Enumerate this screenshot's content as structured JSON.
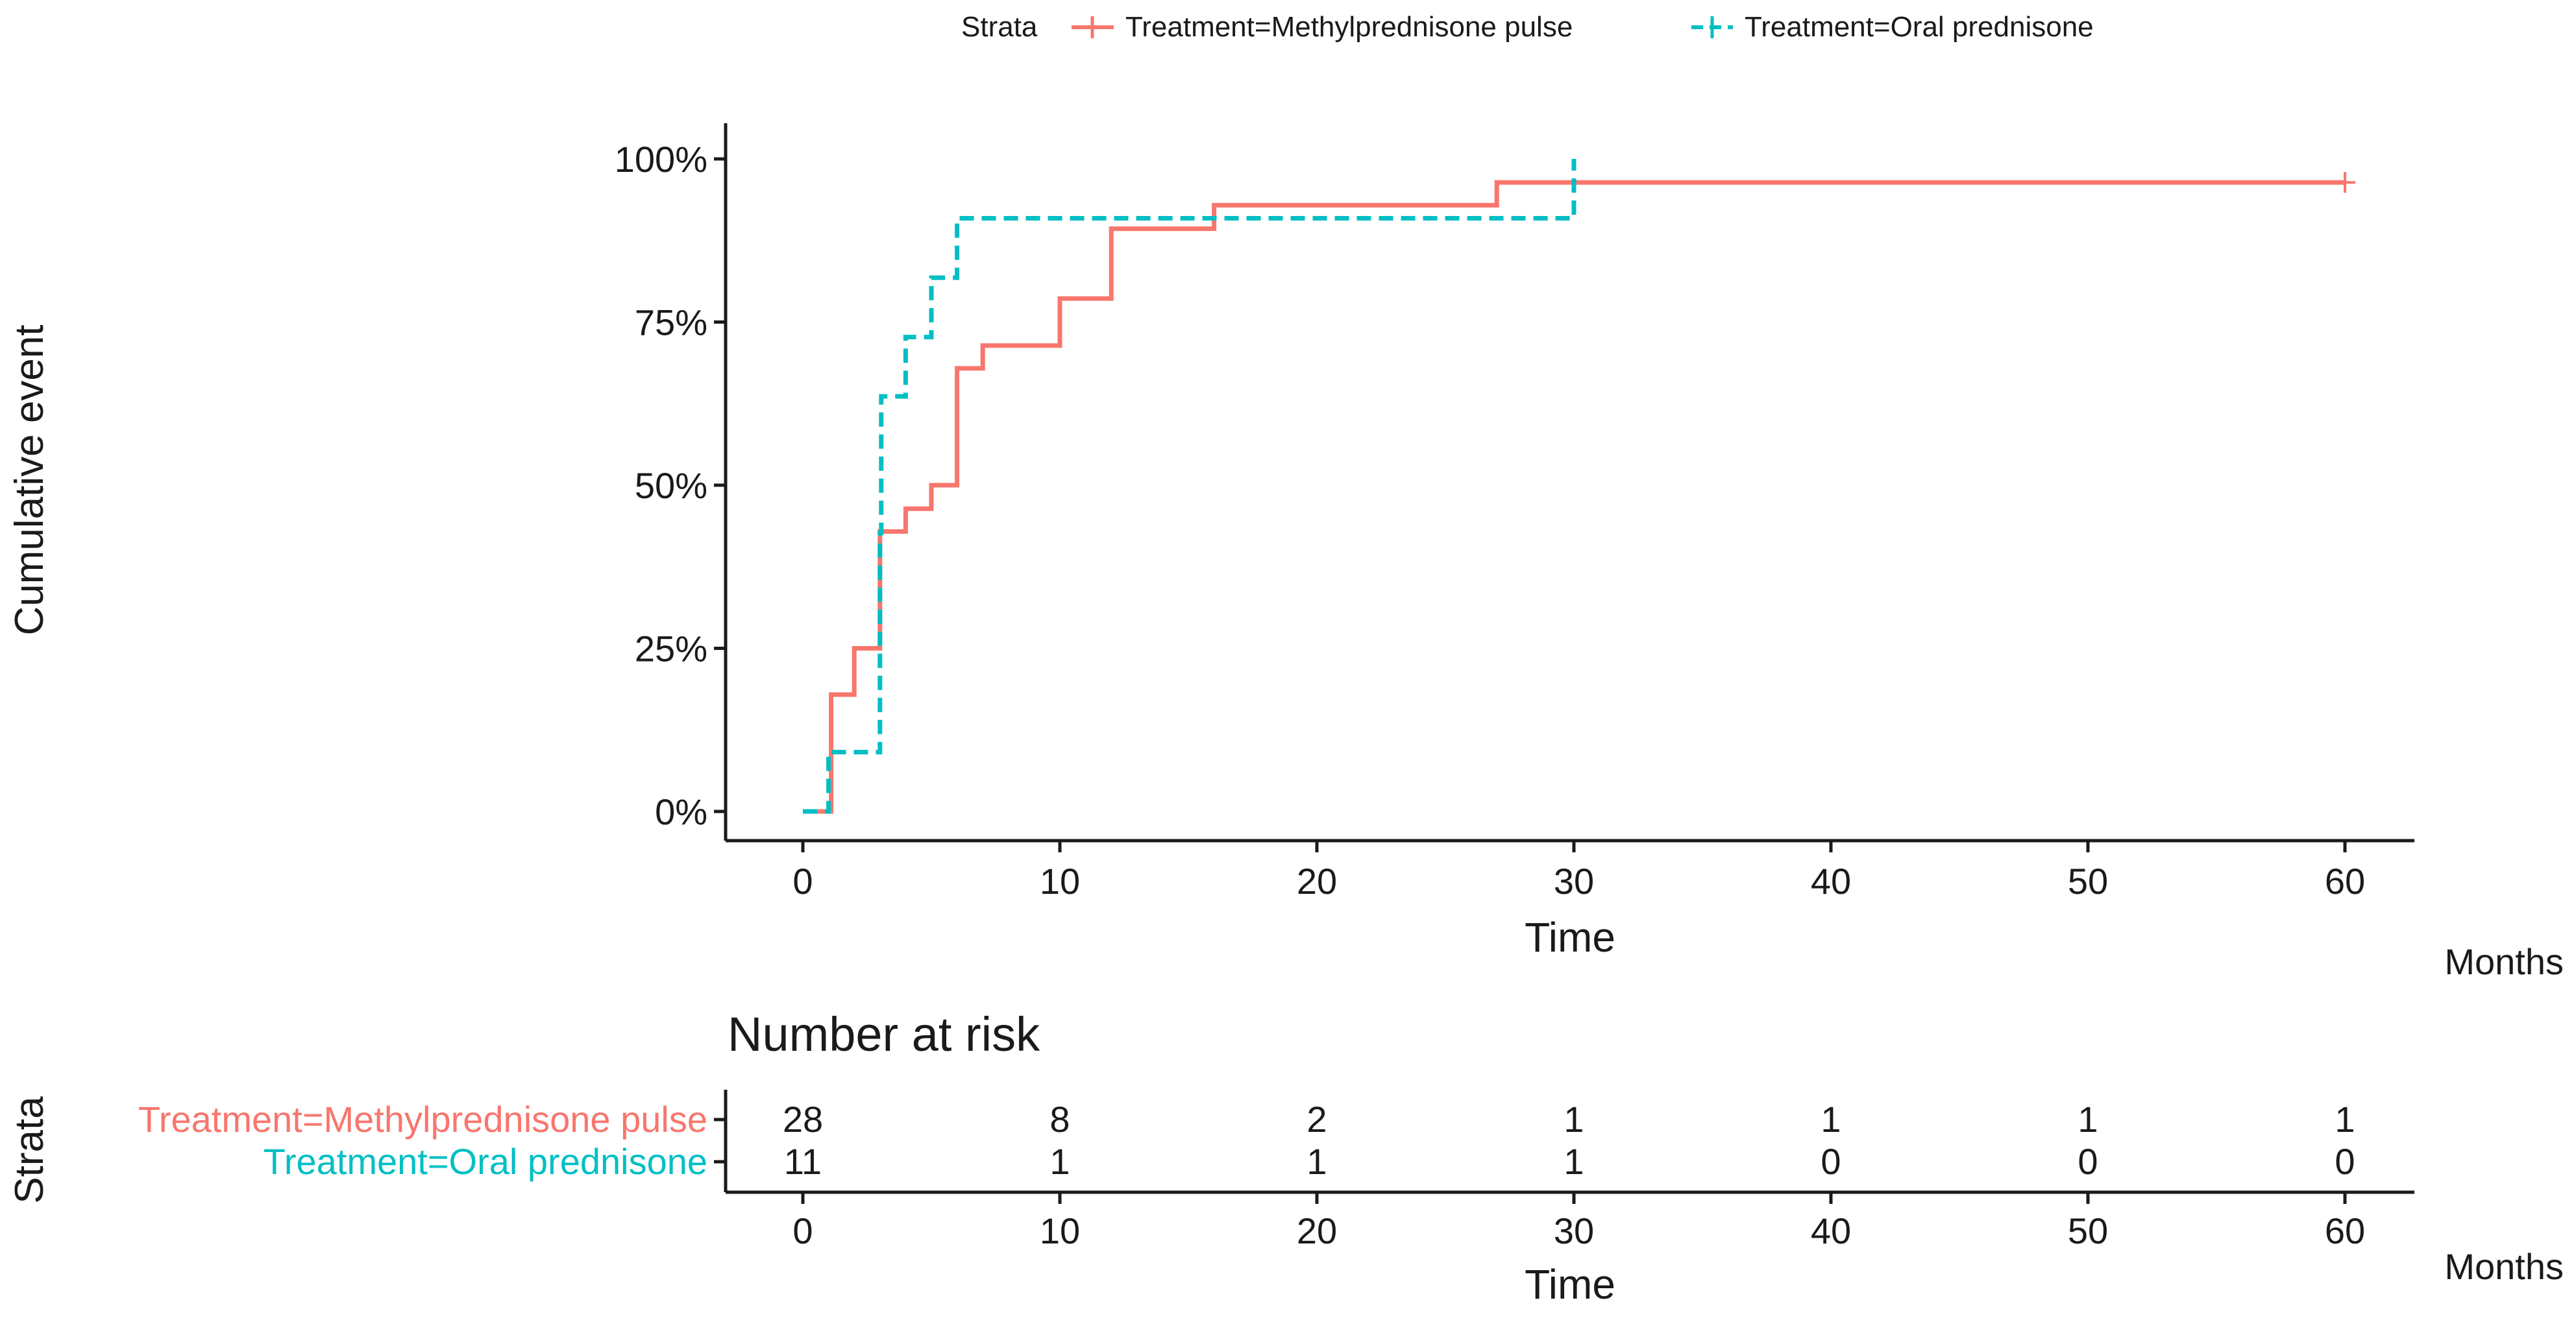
{
  "legend": {
    "title": "Strata",
    "entries": [
      {
        "label": "Treatment=Methylprednisone pulse",
        "color": "#F8766D",
        "dash": "solid"
      },
      {
        "label": "Treatment=Oral prednisone",
        "color": "#00BFC4",
        "dash": "dashed"
      }
    ]
  },
  "chart_data": [
    {
      "type": "line",
      "title": "",
      "xlabel": "Time",
      "ylabel": "Cumulative event",
      "x_unit_note": "Months",
      "xlim": [
        0,
        60
      ],
      "ylim": [
        0,
        1
      ],
      "x_ticks": [
        0,
        10,
        20,
        30,
        40,
        50,
        60
      ],
      "y_ticks": [
        {
          "value": 0,
          "label": "0%"
        },
        {
          "value": 0.25,
          "label": "25%"
        },
        {
          "value": 0.5,
          "label": "50%"
        },
        {
          "value": 0.75,
          "label": "75%"
        },
        {
          "value": 1.0,
          "label": "100%"
        }
      ],
      "grid": false,
      "legend_position": "top",
      "series": [
        {
          "name": "Treatment=Methylprednisone pulse",
          "color": "#F8766D",
          "dash": "solid",
          "step": "post",
          "x": [
            0,
            1,
            1.1,
            2,
            3,
            4,
            5,
            6,
            7,
            10,
            12,
            16,
            27,
            60
          ],
          "y": [
            0,
            0,
            0.179,
            0.25,
            0.429,
            0.464,
            0.5,
            0.679,
            0.714,
            0.786,
            0.893,
            0.929,
            0.964,
            0.964
          ],
          "censored": [
            {
              "x": 60,
              "y": 0.964
            }
          ]
        },
        {
          "name": "Treatment=Oral prednisone",
          "color": "#00BFC4",
          "dash": "dashed",
          "step": "post",
          "x": [
            0,
            1,
            3,
            3.05,
            4,
            5,
            6,
            30
          ],
          "y": [
            0,
            0.091,
            0.427,
            0.636,
            0.727,
            0.818,
            0.909,
            1.0
          ],
          "censored": []
        }
      ]
    },
    {
      "type": "table",
      "title": "Number at risk",
      "xlabel": "Time",
      "ylabel": "Strata",
      "x_unit_note": "Months",
      "x_ticks": [
        0,
        10,
        20,
        30,
        40,
        50,
        60
      ],
      "rows": [
        {
          "name": "Treatment=Methylprednisone pulse",
          "color": "#F8766D",
          "values": [
            28,
            8,
            2,
            1,
            1,
            1,
            1
          ]
        },
        {
          "name": "Treatment=Oral prednisone",
          "color": "#00BFC4",
          "values": [
            11,
            1,
            1,
            1,
            0,
            0,
            0
          ]
        }
      ]
    }
  ]
}
